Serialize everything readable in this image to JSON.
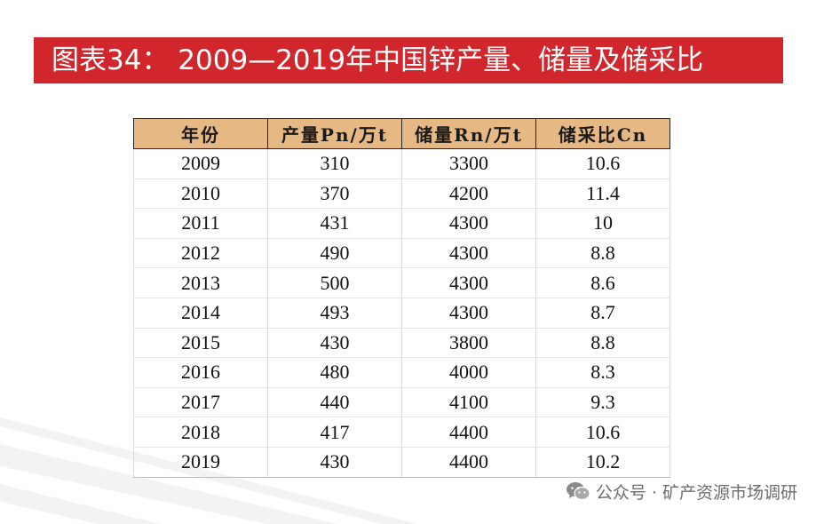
{
  "title": "图表34： 2009—2019年中国锌产量、储量及储采比",
  "table": {
    "headers": [
      "年份",
      "产量Pn/万t",
      "储量Rn/万t",
      "储采比Cn"
    ],
    "rows": [
      [
        "2009",
        "310",
        "3300",
        "10.6"
      ],
      [
        "2010",
        "370",
        "4200",
        "11.4"
      ],
      [
        "2011",
        "431",
        "4300",
        "10"
      ],
      [
        "2012",
        "490",
        "4300",
        "8.8"
      ],
      [
        "2013",
        "500",
        "4300",
        "8.6"
      ],
      [
        "2014",
        "493",
        "4300",
        "8.7"
      ],
      [
        "2015",
        "430",
        "3800",
        "8.8"
      ],
      [
        "2016",
        "480",
        "4000",
        "8.3"
      ],
      [
        "2017",
        "440",
        "4100",
        "9.3"
      ],
      [
        "2018",
        "417",
        "4400",
        "10.6"
      ],
      [
        "2019",
        "430",
        "4400",
        "10.2"
      ]
    ]
  },
  "watermark": {
    "text": "公众号 · 矿产资源市场调研",
    "icon": "wechat-icon"
  },
  "colors": {
    "title_bg": "#d1262b",
    "header_bg": "#e6b883"
  }
}
